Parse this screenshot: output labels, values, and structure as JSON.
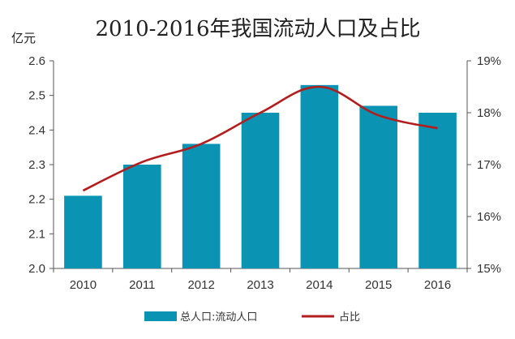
{
  "chart_data": {
    "type": "bar+line",
    "title": "2010-2016年我国流动人口及占比",
    "left_unit": "亿元",
    "categories": [
      "2010",
      "2011",
      "2012",
      "2013",
      "2014",
      "2015",
      "2016"
    ],
    "series": [
      {
        "name": "总人口:流动人口",
        "type": "bar",
        "axis": "left",
        "color": "#0a93b3",
        "values": [
          2.21,
          2.3,
          2.36,
          2.45,
          2.53,
          2.47,
          2.45
        ]
      },
      {
        "name": "占比",
        "type": "line",
        "axis": "right",
        "color": "#b21d1d",
        "values": [
          16.5,
          17.05,
          17.4,
          18.0,
          18.5,
          17.95,
          17.7
        ]
      }
    ],
    "ylim_left": [
      2.0,
      2.6
    ],
    "yticks_left": [
      "2.0",
      "2.1",
      "2.2",
      "2.3",
      "2.4",
      "2.5",
      "2.6"
    ],
    "ylim_right": [
      15,
      19
    ],
    "yticks_right": [
      "15%",
      "16%",
      "17%",
      "18%",
      "19%"
    ],
    "grid": false,
    "legend_position": "bottom"
  }
}
